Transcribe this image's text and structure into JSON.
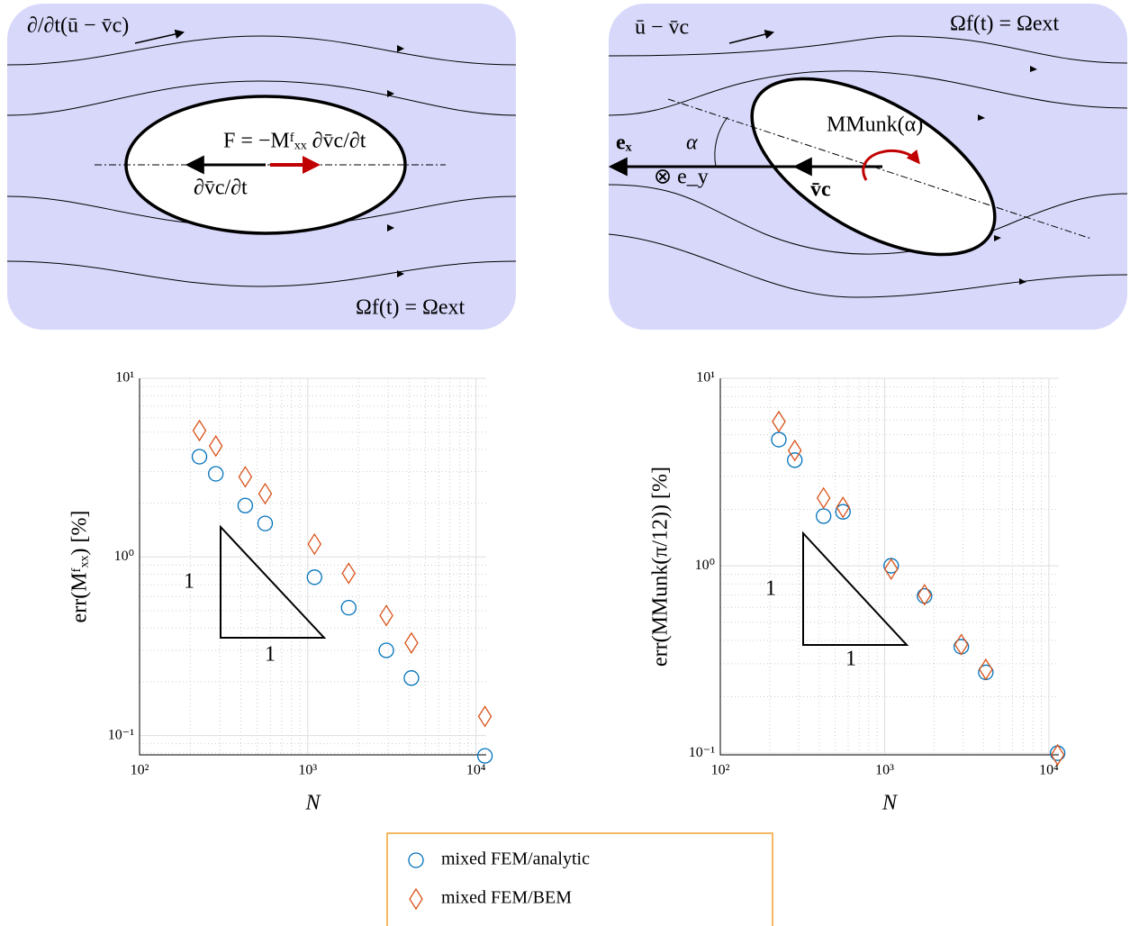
{
  "diagrams": [
    {
      "labels": [
        "∂/∂t(ū − v̄c)",
        "F = −Mᶠₓₓ ∂v̄c/∂t",
        "∂v̄c/∂t",
        "Ωf(t) = Ωext"
      ]
    },
    {
      "labels": [
        "ū − v̄c",
        "Ωf(t) = Ωext",
        "MMunk(α)",
        "eₓ",
        "⊗ e_y",
        "α",
        "v̄c"
      ]
    }
  ],
  "chart_data": [
    {
      "type": "scatter",
      "x_label": "N",
      "y_label": "err(Mᶠₓₓ) [%]",
      "log_x": true,
      "log_y": true,
      "grid": true,
      "xlim": [
        100,
        11500
      ],
      "ylim": [
        0.078,
        10
      ],
      "xticks": [
        {
          "value": 100,
          "label": "10²"
        },
        {
          "value": 1000,
          "label": "10³"
        },
        {
          "value": 10000,
          "label": "10⁴"
        }
      ],
      "yticks": [
        {
          "value": 0.1,
          "label": "10⁻¹"
        },
        {
          "value": 1,
          "label": "10⁰"
        },
        {
          "value": 10,
          "label": "10¹"
        }
      ],
      "annotations": [
        "1",
        "1"
      ],
      "x": [
        227,
        284,
        425,
        558,
        1096,
        1750,
        2930,
        4130,
        11300
      ],
      "series": [
        {
          "name": "mixed FEM/analytic",
          "color": "#0072bd",
          "marker": "circle",
          "values": [
            3.64,
            2.92,
            1.94,
            1.54,
            0.77,
            0.52,
            0.3,
            0.21,
            0.077
          ]
        },
        {
          "name": "mixed FEM/BEM",
          "color": "#d95319",
          "marker": "diamond",
          "values": [
            5.1,
            4.18,
            2.81,
            2.26,
            1.18,
            0.81,
            0.47,
            0.33,
            0.128
          ]
        }
      ]
    },
    {
      "type": "scatter",
      "x_label": "N",
      "y_label": "err(MMunk(π/12)) [%]",
      "log_x": true,
      "log_y": true,
      "grid": true,
      "xlim": [
        100,
        11500
      ],
      "ylim": [
        0.098,
        10
      ],
      "xticks": [
        {
          "value": 100,
          "label": "10²"
        },
        {
          "value": 1000,
          "label": "10³"
        },
        {
          "value": 10000,
          "label": "10⁴"
        }
      ],
      "yticks": [
        {
          "value": 0.1,
          "label": "10⁻¹"
        },
        {
          "value": 1,
          "label": "10⁰"
        },
        {
          "value": 10,
          "label": "10¹"
        }
      ],
      "annotations": [
        "1",
        "1"
      ],
      "x": [
        227,
        284,
        425,
        558,
        1096,
        1750,
        2930,
        4130,
        11300
      ],
      "series": [
        {
          "color": "#0072bd",
          "marker": "circle",
          "values": [
            4.71,
            3.66,
            1.84,
            1.94,
            1.0,
            0.69,
            0.37,
            0.27,
            0.1
          ]
        },
        {
          "color": "#d95319",
          "marker": "diamond",
          "values": [
            5.88,
            4.12,
            2.3,
            2.05,
            0.96,
            0.7,
            0.38,
            0.28,
            0.098
          ]
        }
      ]
    }
  ]
}
